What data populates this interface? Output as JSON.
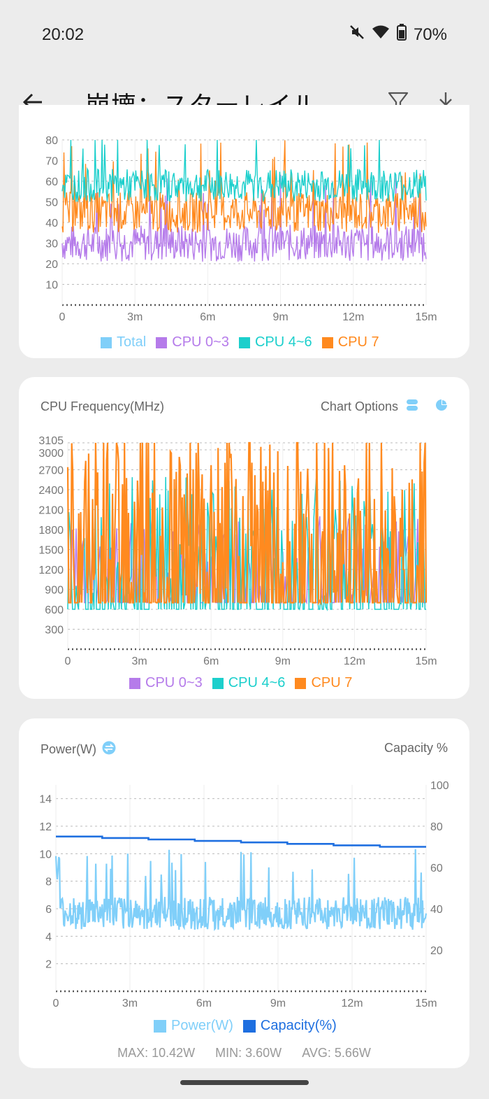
{
  "status": {
    "time": "20:02",
    "battery": "70%"
  },
  "app_bar": {
    "title": "崩壊：スターレイル"
  },
  "colors": {
    "total": "#80cff9",
    "cpu03": "#b57bea",
    "cpu46": "#1ccfcc",
    "cpu7": "#ff8a1f",
    "power": "#80cff9",
    "capacity": "#1e6fe0"
  },
  "card_load": {
    "legend": [
      "Total",
      "CPU 0~3",
      "CPU 4~6",
      "CPU 7"
    ]
  },
  "card_freq": {
    "title": "CPU Frequency(MHz)",
    "options_label": "Chart Options",
    "legend": [
      "CPU 0~3",
      "CPU 4~6",
      "CPU 7"
    ]
  },
  "card_power": {
    "title": "Power(W)",
    "right_label": "Capacity %",
    "legend": [
      "Power(W)",
      "Capacity(%)"
    ],
    "stats": {
      "max": "MAX: 10.42W",
      "min": "MIN: 3.60W",
      "avg": "AVG: 5.66W"
    }
  },
  "chart_data": [
    {
      "type": "line",
      "ylim": [
        0,
        80
      ],
      "y_ticks": [
        "10",
        "20",
        "30",
        "40",
        "50",
        "60",
        "70",
        "80"
      ],
      "x_ticks": [
        "0",
        "3m",
        "6m",
        "9m",
        "12m",
        "15m"
      ],
      "series": [
        {
          "name": "CPU 0~3",
          "mean": 30,
          "spread": 9
        },
        {
          "name": "CPU 7",
          "mean": 45,
          "spread": 10
        },
        {
          "name": "CPU 4~6",
          "mean": 58,
          "spread": 8
        }
      ]
    },
    {
      "type": "line",
      "ylim": [
        0,
        3105
      ],
      "y_ticks": [
        "300",
        "600",
        "900",
        "1200",
        "1500",
        "1800",
        "2100",
        "2400",
        "2700",
        "3000",
        "3105"
      ],
      "x_ticks": [
        "0",
        "3m",
        "6m",
        "9m",
        "12m",
        "15m"
      ],
      "series": [
        {
          "name": "CPU 0~3",
          "min": 700,
          "max": 2000
        },
        {
          "name": "CPU 4~6",
          "min": 600,
          "max": 2600
        },
        {
          "name": "CPU 7",
          "min": 700,
          "max": 3105
        }
      ]
    },
    {
      "type": "line",
      "ylim": [
        0,
        15
      ],
      "y_ticks": [
        "2",
        "4",
        "6",
        "8",
        "10",
        "12",
        "14"
      ],
      "y2lim": [
        0,
        100
      ],
      "y2_ticks": [
        "20",
        "40",
        "60",
        "80",
        "100"
      ],
      "x_ticks": [
        "0",
        "3m",
        "6m",
        "9m",
        "12m",
        "15m"
      ],
      "series": [
        {
          "name": "Power(W)",
          "max": 10.42,
          "min": 3.6,
          "avg": 5.66
        },
        {
          "name": "Capacity(%)",
          "start": 75,
          "end": 70
        }
      ]
    }
  ]
}
